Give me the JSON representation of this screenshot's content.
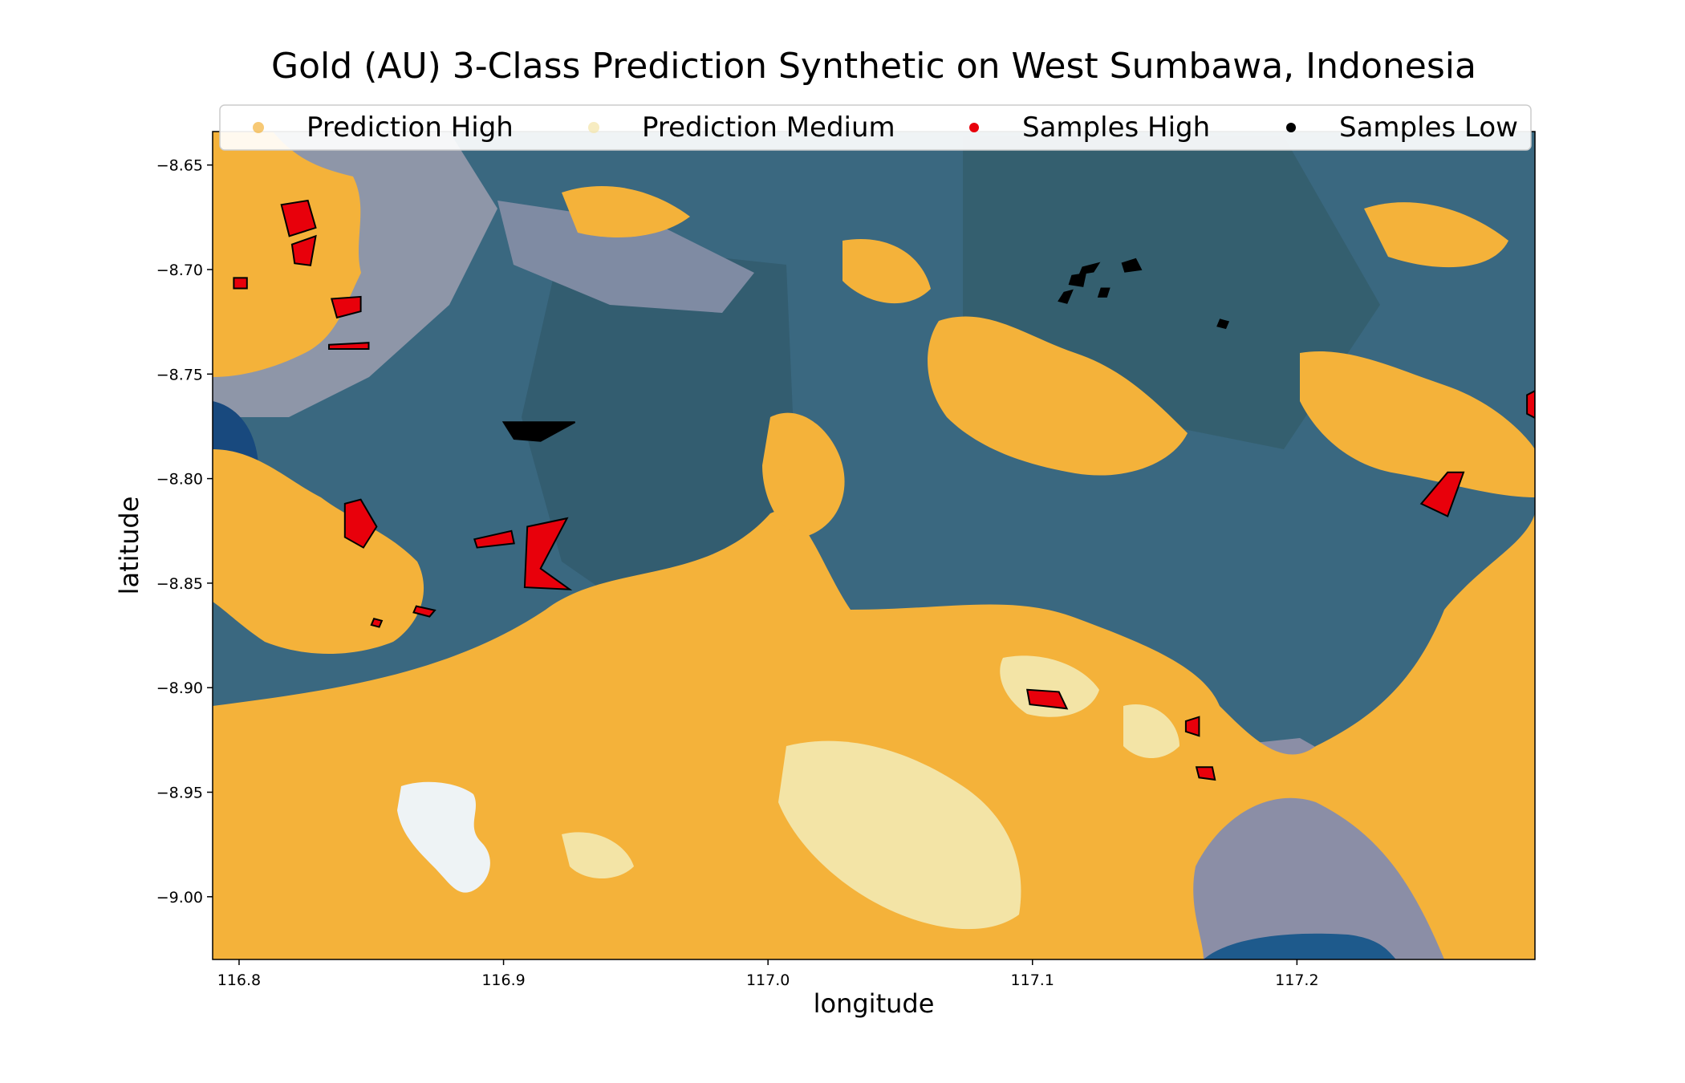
{
  "chart_data": {
    "type": "scatter",
    "title": "Gold (AU) 3-Class Prediction Synthetic on West Sumbawa, Indonesia",
    "xlabel": "longitude",
    "ylabel": "latitude",
    "xlim": [
      116.79,
      117.29
    ],
    "ylim": [
      -9.03,
      -8.634
    ],
    "x_ticks": [
      116.8,
      116.9,
      117.0,
      117.1,
      117.2
    ],
    "x_tick_labels": [
      "116.8",
      "116.9",
      "117.0",
      "117.1",
      "117.2"
    ],
    "y_ticks": [
      -8.65,
      -8.7,
      -8.75,
      -8.8,
      -8.85,
      -8.9,
      -8.95,
      -9.0
    ],
    "y_tick_labels": [
      "−8.65",
      "−8.70",
      "−8.75",
      "−8.80",
      "−8.85",
      "−8.90",
      "−8.95",
      "−9.00"
    ],
    "background": "satellite imagery",
    "legend": {
      "placement": "top",
      "entries": [
        {
          "name": "Prediction High",
          "color": "#f4b23a"
        },
        {
          "name": "Prediction Medium",
          "color": "#f3e4a6"
        },
        {
          "name": "Samples High",
          "color": "#e8000b"
        },
        {
          "name": "Samples Low",
          "color": "#000000"
        }
      ]
    },
    "sample_polygons": [
      {
        "class": "Samples High",
        "points": [
          [
            116.816,
            -8.669
          ],
          [
            116.826,
            -8.667
          ],
          [
            116.829,
            -8.68
          ],
          [
            116.819,
            -8.684
          ]
        ]
      },
      {
        "class": "Samples High",
        "points": [
          [
            116.82,
            -8.688
          ],
          [
            116.829,
            -8.684
          ],
          [
            116.827,
            -8.698
          ],
          [
            116.821,
            -8.697
          ]
        ]
      },
      {
        "class": "Samples High",
        "points": [
          [
            116.798,
            -8.704
          ],
          [
            116.803,
            -8.704
          ],
          [
            116.803,
            -8.709
          ],
          [
            116.798,
            -8.709
          ]
        ]
      },
      {
        "class": "Samples High",
        "points": [
          [
            116.835,
            -8.714
          ],
          [
            116.846,
            -8.713
          ],
          [
            116.846,
            -8.72
          ],
          [
            116.837,
            -8.723
          ]
        ]
      },
      {
        "class": "Samples High",
        "points": [
          [
            116.834,
            -8.736
          ],
          [
            116.849,
            -8.735
          ],
          [
            116.849,
            -8.738
          ],
          [
            116.834,
            -8.738
          ]
        ]
      },
      {
        "class": "Samples Low",
        "points": [
          [
            116.9,
            -8.773
          ],
          [
            116.927,
            -8.773
          ],
          [
            116.914,
            -8.782
          ],
          [
            116.904,
            -8.781
          ]
        ]
      },
      {
        "class": "Samples High",
        "points": [
          [
            116.84,
            -8.812
          ],
          [
            116.846,
            -8.81
          ],
          [
            116.852,
            -8.823
          ],
          [
            116.847,
            -8.833
          ],
          [
            116.84,
            -8.828
          ]
        ]
      },
      {
        "class": "Samples High",
        "points": [
          [
            116.889,
            -8.829
          ],
          [
            116.903,
            -8.825
          ],
          [
            116.904,
            -8.831
          ],
          [
            116.89,
            -8.833
          ]
        ]
      },
      {
        "class": "Samples High",
        "points": [
          [
            116.909,
            -8.823
          ],
          [
            116.924,
            -8.819
          ],
          [
            116.914,
            -8.843
          ],
          [
            116.925,
            -8.853
          ],
          [
            116.908,
            -8.852
          ]
        ]
      },
      {
        "class": "Samples High",
        "points": [
          [
            116.867,
            -8.861
          ],
          [
            116.874,
            -8.863
          ],
          [
            116.872,
            -8.866
          ],
          [
            116.866,
            -8.864
          ]
        ]
      },
      {
        "class": "Samples High",
        "points": [
          [
            116.851,
            -8.867
          ],
          [
            116.854,
            -8.868
          ],
          [
            116.853,
            -8.871
          ],
          [
            116.85,
            -8.87
          ]
        ]
      },
      {
        "class": "Samples Low",
        "points": [
          [
            117.119,
            -8.699
          ],
          [
            117.125,
            -8.697
          ],
          [
            117.123,
            -8.701
          ],
          [
            117.118,
            -8.702
          ]
        ]
      },
      {
        "class": "Samples Low",
        "points": [
          [
            117.134,
            -8.697
          ],
          [
            117.139,
            -8.695
          ],
          [
            117.141,
            -8.7
          ],
          [
            117.135,
            -8.701
          ]
        ]
      },
      {
        "class": "Samples Low",
        "points": [
          [
            117.115,
            -8.703
          ],
          [
            117.12,
            -8.702
          ],
          [
            117.119,
            -8.708
          ],
          [
            117.114,
            -8.707
          ]
        ]
      },
      {
        "class": "Samples Low",
        "points": [
          [
            117.112,
            -8.711
          ],
          [
            117.115,
            -8.71
          ],
          [
            117.113,
            -8.716
          ],
          [
            117.11,
            -8.715
          ]
        ]
      },
      {
        "class": "Samples Low",
        "points": [
          [
            117.126,
            -8.709
          ],
          [
            117.129,
            -8.709
          ],
          [
            117.128,
            -8.713
          ],
          [
            117.125,
            -8.713
          ]
        ]
      },
      {
        "class": "Samples Low",
        "points": [
          [
            117.171,
            -8.724
          ],
          [
            117.174,
            -8.725
          ],
          [
            117.173,
            -8.728
          ],
          [
            117.17,
            -8.727
          ]
        ]
      },
      {
        "class": "Samples High",
        "points": [
          [
            117.257,
            -8.797
          ],
          [
            117.263,
            -8.797
          ],
          [
            117.257,
            -8.818
          ],
          [
            117.247,
            -8.812
          ]
        ]
      },
      {
        "class": "Samples High",
        "points": [
          [
            117.287,
            -8.76
          ],
          [
            117.29,
            -8.758
          ],
          [
            117.29,
            -8.771
          ],
          [
            117.287,
            -8.769
          ]
        ]
      },
      {
        "class": "Samples High",
        "points": [
          [
            117.098,
            -8.901
          ],
          [
            117.11,
            -8.902
          ],
          [
            117.113,
            -8.91
          ],
          [
            117.099,
            -8.908
          ]
        ]
      },
      {
        "class": "Samples High",
        "points": [
          [
            117.158,
            -8.916
          ],
          [
            117.163,
            -8.914
          ],
          [
            117.163,
            -8.923
          ],
          [
            117.158,
            -8.921
          ]
        ]
      },
      {
        "class": "Samples High",
        "points": [
          [
            117.162,
            -8.938
          ],
          [
            117.168,
            -8.938
          ],
          [
            117.169,
            -8.944
          ],
          [
            117.163,
            -8.943
          ]
        ]
      }
    ]
  }
}
